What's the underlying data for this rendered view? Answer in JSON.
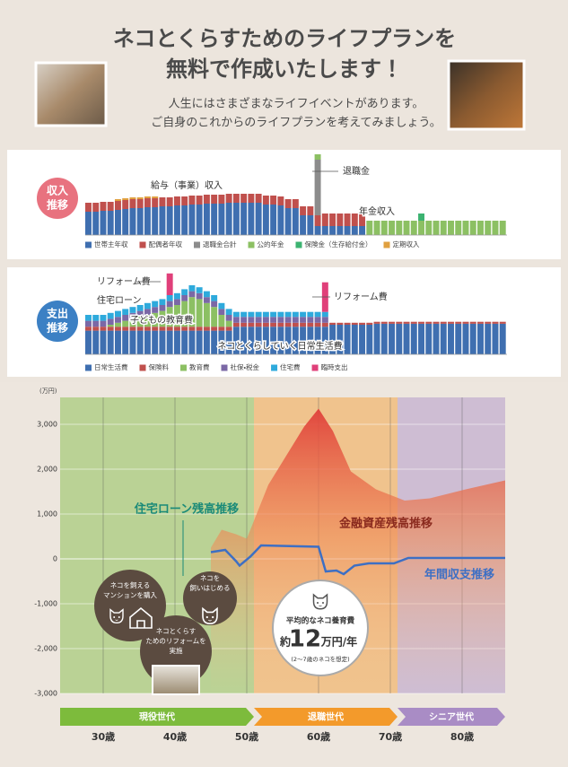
{
  "header": {
    "title": [
      "ネコとくらすためのライフプランを",
      "無料で作成いたします！"
    ],
    "subtitle": [
      "人生にはさまざまなライフイベントがあります。",
      "ご自身のこれからのライフプランを考えてみましょう。"
    ]
  },
  "chart_data": [
    {
      "type": "stacked_bar",
      "panel_label": [
        "収入",
        "推移"
      ],
      "panel_color": "#e8727f",
      "annotations": [
        "給与（事業）収入",
        "退職金",
        "年金収入"
      ],
      "series": [
        {
          "name": "世帯主年収",
          "color": "#3f6fb0",
          "values": [
            26,
            26,
            27,
            27,
            28,
            29,
            30,
            30,
            31,
            31,
            32,
            32,
            33,
            33,
            34,
            34,
            35,
            35,
            35,
            36,
            36,
            36,
            36,
            36,
            34,
            34,
            33,
            30,
            30,
            22,
            22,
            10,
            10,
            10,
            10,
            10,
            10,
            10,
            0,
            0,
            0,
            0,
            0,
            0,
            0,
            0,
            0,
            0,
            0,
            0,
            0,
            0,
            0,
            0,
            0,
            0,
            0
          ]
        },
        {
          "name": "配偶者年収",
          "color": "#c0504d",
          "values": [
            10,
            10,
            10,
            10,
            10,
            10,
            10,
            10,
            10,
            10,
            10,
            10,
            10,
            10,
            10,
            10,
            10,
            10,
            10,
            10,
            10,
            10,
            10,
            10,
            10,
            10,
            10,
            10,
            10,
            10,
            10,
            12,
            14,
            14,
            14,
            14,
            14,
            14,
            0,
            0,
            0,
            0,
            0,
            0,
            0,
            0,
            0,
            0,
            0,
            0,
            0,
            0,
            0,
            0,
            0,
            0,
            0
          ]
        },
        {
          "name": "退職金合計",
          "color": "#8c8c8c",
          "values": [
            0,
            0,
            0,
            0,
            0,
            0,
            0,
            0,
            0,
            0,
            0,
            0,
            0,
            0,
            0,
            0,
            0,
            0,
            0,
            0,
            0,
            0,
            0,
            0,
            0,
            0,
            0,
            0,
            0,
            0,
            0,
            62,
            0,
            0,
            0,
            0,
            0,
            0,
            0,
            0,
            0,
            0,
            0,
            0,
            0,
            0,
            0,
            0,
            0,
            0,
            0,
            0,
            0,
            0,
            0,
            0,
            0
          ]
        },
        {
          "name": "公的年金",
          "color": "#8cc063",
          "values": [
            0,
            0,
            0,
            0,
            0,
            0,
            0,
            0,
            0,
            0,
            0,
            0,
            0,
            0,
            0,
            0,
            0,
            0,
            0,
            0,
            0,
            0,
            0,
            0,
            0,
            0,
            0,
            0,
            0,
            0,
            0,
            6,
            0,
            0,
            0,
            0,
            0,
            0,
            16,
            16,
            16,
            16,
            16,
            16,
            16,
            16,
            16,
            16,
            16,
            16,
            16,
            16,
            16,
            16,
            16,
            16,
            16
          ]
        },
        {
          "name": "保険金（生存給付金）",
          "color": "#3cb371",
          "values": [
            0,
            0,
            0,
            0,
            0,
            0,
            0,
            0,
            0,
            0,
            0,
            0,
            0,
            0,
            0,
            0,
            0,
            0,
            0,
            0,
            0,
            0,
            0,
            0,
            0,
            0,
            0,
            0,
            0,
            0,
            0,
            0,
            0,
            0,
            0,
            0,
            0,
            0,
            0,
            0,
            0,
            0,
            0,
            0,
            0,
            8,
            0,
            0,
            0,
            0,
            0,
            0,
            0,
            0,
            0,
            0,
            0
          ]
        },
        {
          "name": "定期収入",
          "color": "#e0a040",
          "values": [
            0,
            0,
            0,
            0,
            2,
            2,
            2,
            2,
            2,
            2,
            0,
            0,
            0,
            0,
            0,
            0,
            0,
            0,
            0,
            0,
            0,
            0,
            0,
            0,
            0,
            0,
            0,
            0,
            0,
            0,
            0,
            0,
            0,
            0,
            0,
            0,
            0,
            0,
            0,
            0,
            0,
            0,
            0,
            0,
            0,
            0,
            0,
            0,
            0,
            0,
            0,
            0,
            0,
            0,
            0,
            0,
            0
          ]
        }
      ]
    },
    {
      "type": "stacked_bar",
      "panel_label": [
        "支出",
        "推移"
      ],
      "panel_color": "#3c80c4",
      "annotations": [
        "リフォーム費",
        "住宅ローン",
        "子どもの教育費",
        "リフォーム費",
        "ネコとくらしていく日常生活費"
      ],
      "series": [
        {
          "name": "日常生活費",
          "color": "#3f6fb0",
          "values": [
            24,
            24,
            24,
            24,
            24,
            24,
            24,
            24,
            24,
            24,
            24,
            24,
            24,
            24,
            24,
            24,
            24,
            24,
            24,
            24,
            28,
            28,
            28,
            28,
            28,
            28,
            28,
            28,
            28,
            28,
            28,
            28,
            28,
            30,
            30,
            30,
            30,
            30,
            30,
            31,
            31,
            31,
            31,
            31,
            31,
            31,
            31,
            31,
            31,
            31,
            31,
            31,
            31,
            31,
            31,
            31,
            31
          ]
        },
        {
          "name": "保険料",
          "color": "#c0504d",
          "values": [
            4,
            4,
            4,
            4,
            4,
            4,
            4,
            4,
            4,
            4,
            4,
            4,
            4,
            4,
            4,
            4,
            4,
            4,
            4,
            4,
            4,
            4,
            4,
            4,
            4,
            4,
            4,
            4,
            4,
            4,
            4,
            4,
            4,
            2,
            2,
            2,
            2,
            2,
            2,
            2,
            2,
            2,
            2,
            2,
            2,
            2,
            2,
            2,
            2,
            2,
            2,
            2,
            2,
            2,
            2,
            2,
            2
          ]
        },
        {
          "name": "教育費",
          "color": "#8cc063",
          "values": [
            0,
            0,
            0,
            2,
            4,
            6,
            8,
            10,
            12,
            14,
            16,
            20,
            22,
            26,
            30,
            28,
            24,
            20,
            12,
            6,
            0,
            0,
            0,
            0,
            0,
            0,
            0,
            0,
            0,
            0,
            0,
            0,
            0,
            0,
            0,
            0,
            0,
            0,
            0,
            0,
            0,
            0,
            0,
            0,
            0,
            0,
            0,
            0,
            0,
            0,
            0,
            0,
            0,
            0,
            0,
            0,
            0
          ]
        },
        {
          "name": "社保・税金",
          "color": "#7b68a6",
          "values": [
            6,
            6,
            6,
            6,
            6,
            6,
            6,
            6,
            6,
            6,
            6,
            6,
            6,
            6,
            6,
            6,
            6,
            6,
            6,
            6,
            6,
            6,
            6,
            6,
            6,
            6,
            6,
            6,
            6,
            6,
            6,
            6,
            6,
            0,
            0,
            0,
            0,
            0,
            0,
            0,
            0,
            0,
            0,
            0,
            0,
            0,
            0,
            0,
            0,
            0,
            0,
            0,
            0,
            0,
            0,
            0,
            0
          ]
        },
        {
          "name": "住宅費",
          "color": "#2eaadc",
          "values": [
            6,
            6,
            6,
            6,
            6,
            6,
            6,
            6,
            6,
            6,
            6,
            6,
            6,
            6,
            6,
            6,
            6,
            6,
            6,
            6,
            5,
            5,
            5,
            5,
            5,
            5,
            5,
            5,
            5,
            5,
            5,
            5,
            5,
            0,
            0,
            0,
            0,
            0,
            0,
            0,
            0,
            0,
            0,
            0,
            0,
            0,
            0,
            0,
            0,
            0,
            0,
            0,
            0,
            0,
            0,
            0,
            0
          ]
        },
        {
          "name": "臨時支出",
          "color": "#e0407a",
          "values": [
            0,
            0,
            0,
            0,
            0,
            0,
            0,
            0,
            0,
            0,
            0,
            22,
            0,
            0,
            0,
            0,
            0,
            0,
            0,
            0,
            0,
            0,
            0,
            0,
            0,
            0,
            0,
            0,
            0,
            0,
            0,
            0,
            30,
            0,
            0,
            0,
            0,
            0,
            0,
            0,
            0,
            0,
            0,
            0,
            0,
            0,
            0,
            0,
            0,
            0,
            0,
            0,
            0,
            0,
            0,
            0,
            0
          ]
        }
      ]
    },
    {
      "type": "line",
      "y_unit": "(万円)",
      "xlim": [
        24,
        86
      ],
      "ylim": [
        -3000,
        3600
      ],
      "grid": true,
      "xticks": [
        {
          "value": 30,
          "label": "30歳"
        },
        {
          "value": 40,
          "label": "40歳"
        },
        {
          "value": 50,
          "label": "50歳"
        },
        {
          "value": 60,
          "label": "60歳"
        },
        {
          "value": 70,
          "label": "70歳"
        },
        {
          "value": 80,
          "label": "80歳"
        }
      ],
      "yticks": [
        {
          "value": 3000,
          "label": "3,000"
        },
        {
          "value": 2000,
          "label": "2,000"
        },
        {
          "value": 1000,
          "label": "1,000"
        },
        0,
        {
          "value": -1000,
          "label": "-1,000"
        },
        {
          "value": -2000,
          "label": "-2,000"
        },
        {
          "value": -3000,
          "label": "-3,000"
        }
      ],
      "series": [
        {
          "name": "金融資産残高推移",
          "type": "area",
          "color": "#e24a3c",
          "x": [
            45,
            46.5,
            48.5,
            50,
            53,
            58,
            60,
            62,
            64.5,
            68,
            72,
            75.5,
            80.5,
            86
          ],
          "values": [
            250,
            650,
            550,
            450,
            1650,
            2950,
            3350,
            2850,
            1950,
            1550,
            1300,
            1350,
            1550,
            1750
          ]
        },
        {
          "name": "年間収支推移",
          "type": "line",
          "color": "#3d6fc4",
          "x": [
            45,
            47,
            48.5,
            49,
            50.5,
            52,
            60,
            61,
            62.5,
            63.5,
            65,
            67,
            70.5,
            72.5,
            86
          ],
          "values": [
            150,
            200,
            -50,
            -150,
            50,
            300,
            270,
            -280,
            -260,
            -340,
            -150,
            -100,
            -100,
            20,
            20
          ]
        }
      ],
      "annotations": [
        "住宅ローン残高推移"
      ],
      "eras": [
        {
          "name": "現役世代",
          "color": "#7dbb3c",
          "range": [
            24,
            51
          ]
        },
        {
          "name": "退職世代",
          "color": "#f39a2b",
          "range": [
            51,
            71
          ]
        },
        {
          "name": "シニア世代",
          "color": "#a98cc5",
          "range": [
            71,
            86
          ]
        }
      ],
      "callouts": [
        {
          "lines": [
            "ネコを飼える",
            "マンションを購入"
          ]
        },
        {
          "lines": [
            "ネコを",
            "飼いはじめる"
          ]
        },
        {
          "lines": [
            "ネコとくらす",
            "ためのリフォームを",
            "実施"
          ]
        }
      ],
      "cost_note": {
        "title": "平均的なネコ養育費",
        "prefix": "約",
        "amount": "12",
        "unit": "万円/年",
        "note": "(2〜7歳のネコを想定)"
      }
    }
  ]
}
